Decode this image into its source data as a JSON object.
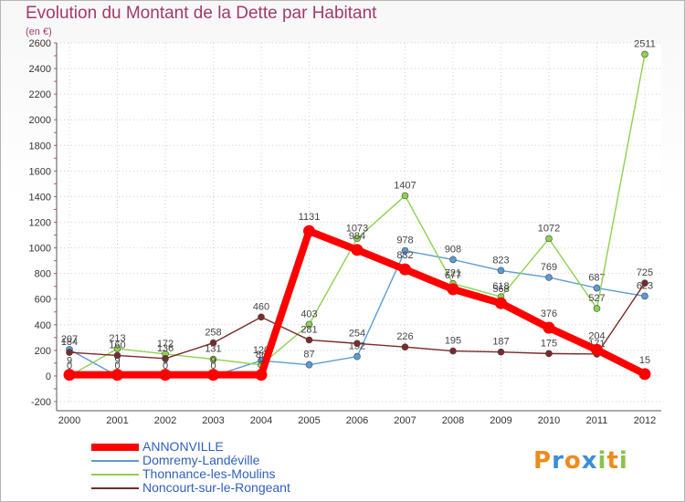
{
  "chart_data": {
    "type": "line",
    "title": "Evolution du Montant de la Dette par Habitant",
    "subtitle": "(en €)",
    "x": [
      "2000",
      "2001",
      "2002",
      "2003",
      "2004",
      "2005",
      "2006",
      "2007",
      "2008",
      "2009",
      "2010",
      "2011",
      "2012"
    ],
    "ylim": [
      -200,
      2600
    ],
    "yticks": [
      -200,
      0,
      200,
      400,
      600,
      800,
      1000,
      1200,
      1400,
      1600,
      1800,
      2000,
      2200,
      2400,
      2600
    ],
    "grid": true,
    "legend_position": "bottom-left",
    "series": [
      {
        "name": "ANNONVILLE",
        "color": "#ff0000",
        "values": [
          9,
          9,
          9,
          9,
          9,
          1131,
          984,
          832,
          677,
          568,
          376,
          204,
          15
        ]
      },
      {
        "name": "Domremy-Landéville",
        "color": "#5b9bd5",
        "values": [
          207,
          0,
          0,
          0,
          120,
          87,
          152,
          978,
          908,
          823,
          769,
          687,
          623
        ]
      },
      {
        "name": "Thonnance-les-Moulins",
        "color": "#8fd14f",
        "values": [
          0,
          213,
          172,
          131,
          86,
          403,
          1073,
          1407,
          721,
          618,
          1072,
          527,
          2511
        ]
      },
      {
        "name": "Noncourt-sur-le-Rongeant",
        "color": "#7a2a2a",
        "values": [
          184,
          160,
          136,
          258,
          460,
          281,
          254,
          226,
          195,
          187,
          175,
          171,
          725
        ]
      }
    ]
  },
  "logo": {
    "text": "Proxiti",
    "letters": [
      "P",
      "r",
      "o",
      "x",
      "i",
      "t",
      "i"
    ],
    "colors": [
      "#f08a1c",
      "#3a8fd6",
      "#f08a1c",
      "#3a8fd6",
      "#8bc34a",
      "#f08a1c",
      "#8bc34a"
    ]
  }
}
